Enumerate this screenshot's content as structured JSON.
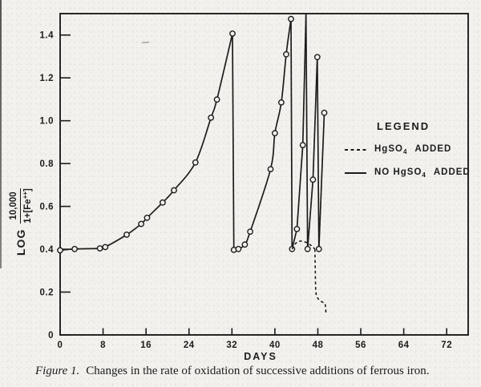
{
  "figure": {
    "caption_label": "Figure 1.",
    "caption_text": "Changes in the rate of oxidation of successive additions of ferrous iron."
  },
  "axes": {
    "x_label": "DAYS",
    "x_ticks": [
      0,
      8,
      16,
      24,
      32,
      40,
      48,
      56,
      64,
      72
    ],
    "y_tick_labels": [
      "1.4",
      "1.2",
      "1.0",
      "0.8",
      "0.6",
      "0.4",
      "0.2",
      "0"
    ],
    "y_tick_values": [
      1.4,
      1.2,
      1.0,
      0.8,
      0.6,
      0.4,
      0.2,
      0
    ],
    "y_label": {
      "prefix": "LOG",
      "numerator": "10,000",
      "den_pre": "1+[Fe",
      "den_sup": "++",
      "den_post": "]"
    }
  },
  "legend": {
    "title": "LEGEND",
    "entries": [
      {
        "line": "dashed",
        "pre": "HgSO",
        "sub": "4",
        "post": "ADDED"
      },
      {
        "line": "solid",
        "pre": "NO HgSO",
        "sub": "4",
        "post": "ADDED"
      }
    ]
  },
  "colors": {
    "ink": "#1b1b1a",
    "paper": "#f2f1ed"
  },
  "chart_data": {
    "type": "line",
    "title": "Changes in the rate of oxidation of successive additions of ferrous iron",
    "xlabel": "DAYS",
    "ylabel": "LOG 10,000/(1+[Fe++])",
    "xlim": [
      0,
      76
    ],
    "ylim": [
      0,
      1.5
    ],
    "grid": false,
    "legend_position": "right-middle",
    "series": [
      {
        "name": "NO HgSO4 ADDED",
        "style": "solid",
        "segments": [
          {
            "smooth": true,
            "points": [
              [
                0,
                0.395
              ],
              [
                2.7,
                0.401
              ],
              [
                7.4,
                0.404
              ],
              [
                8.4,
                0.41
              ],
              [
                12.4,
                0.468
              ],
              [
                15.1,
                0.518
              ],
              [
                16.2,
                0.547
              ],
              [
                19.1,
                0.618
              ],
              [
                21.2,
                0.675
              ],
              [
                25.2,
                0.805
              ],
              [
                28.1,
                1.014
              ],
              [
                29.2,
                1.099
              ],
              [
                32.1,
                1.407
              ]
            ]
          },
          {
            "smooth": false,
            "points": [
              [
                32.1,
                1.407
              ],
              [
                32.35,
                0.397
              ]
            ]
          },
          {
            "smooth": true,
            "points": [
              [
                32.35,
                0.397
              ],
              [
                33.2,
                0.401
              ],
              [
                34.4,
                0.422
              ],
              [
                35.4,
                0.482
              ],
              [
                39.2,
                0.774
              ],
              [
                40,
                0.942
              ],
              [
                41.2,
                1.085
              ],
              [
                42.1,
                1.31
              ],
              [
                43,
                1.475
              ]
            ]
          },
          {
            "smooth": false,
            "points": [
              [
                43,
                1.475
              ],
              [
                43.2,
                0.401
              ]
            ]
          },
          {
            "smooth": false,
            "points": [
              [
                43.2,
                0.401
              ],
              [
                44.1,
                0.494
              ],
              [
                45.2,
                0.886
              ],
              [
                45.8,
                1.498
              ]
            ]
          },
          {
            "smooth": false,
            "points": [
              [
                45.8,
                1.498
              ],
              [
                46.1,
                0.401
              ]
            ]
          },
          {
            "smooth": false,
            "points": [
              [
                46.1,
                0.401
              ],
              [
                47.1,
                0.725
              ],
              [
                47.9,
                1.297
              ]
            ]
          },
          {
            "smooth": false,
            "points": [
              [
                47.9,
                1.297
              ],
              [
                48.2,
                0.401
              ]
            ]
          },
          {
            "smooth": false,
            "points": [
              [
                48.2,
                0.401
              ],
              [
                49.2,
                1.037
              ]
            ]
          }
        ],
        "markers": [
          [
            0,
            0.395
          ],
          [
            2.7,
            0.401
          ],
          [
            7.4,
            0.404
          ],
          [
            8.4,
            0.41
          ],
          [
            12.4,
            0.468
          ],
          [
            15.1,
            0.518
          ],
          [
            16.2,
            0.547
          ],
          [
            19.1,
            0.618
          ],
          [
            21.2,
            0.675
          ],
          [
            25.2,
            0.805
          ],
          [
            28.1,
            1.014
          ],
          [
            29.2,
            1.099
          ],
          [
            32.1,
            1.407
          ],
          [
            32.35,
            0.397
          ],
          [
            33.2,
            0.401
          ],
          [
            34.4,
            0.422
          ],
          [
            35.4,
            0.482
          ],
          [
            39.2,
            0.774
          ],
          [
            40,
            0.942
          ],
          [
            41.2,
            1.085
          ],
          [
            42.1,
            1.31
          ],
          [
            43,
            1.475
          ],
          [
            43.2,
            0.401
          ],
          [
            44.1,
            0.494
          ],
          [
            45.2,
            0.886
          ],
          [
            46.1,
            0.401
          ],
          [
            47.1,
            0.725
          ],
          [
            47.9,
            1.297
          ],
          [
            48.2,
            0.401
          ],
          [
            49.2,
            1.037
          ]
        ]
      },
      {
        "name": "HgSO4 ADDED",
        "style": "dashed",
        "segments": [
          {
            "smooth": true,
            "points": [
              [
                43.2,
                0.401
              ],
              [
                43.9,
                0.428
              ],
              [
                44.8,
                0.438
              ],
              [
                45.7,
                0.433
              ],
              [
                46.6,
                0.42
              ],
              [
                47.15,
                0.409
              ],
              [
                47.45,
                0.4
              ]
            ]
          },
          {
            "smooth": true,
            "points": [
              [
                47.45,
                0.4
              ],
              [
                47.52,
                0.3
              ],
              [
                47.6,
                0.215
              ],
              [
                47.8,
                0.18
              ],
              [
                48.35,
                0.161
              ],
              [
                48.95,
                0.152
              ],
              [
                49.3,
                0.146
              ],
              [
                49.45,
                0.128
              ],
              [
                49.5,
                0.104
              ]
            ]
          }
        ],
        "markers": []
      }
    ]
  }
}
